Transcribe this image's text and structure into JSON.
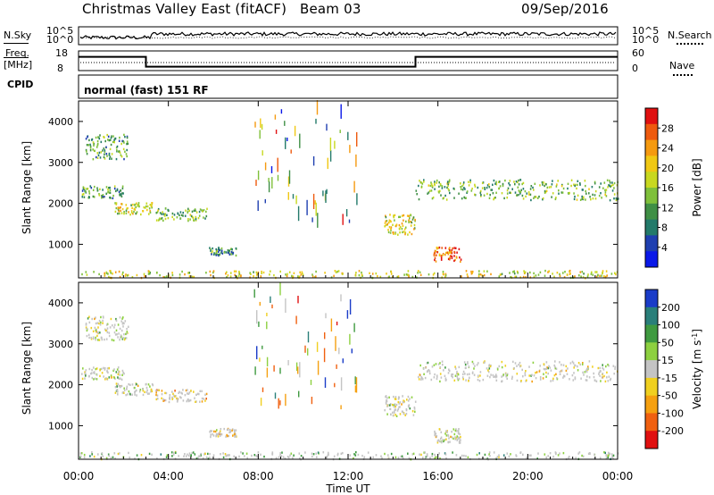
{
  "header": {
    "station": "Christmas Valley East (fitACF)",
    "beam": "Beam 03",
    "date": "09/Sep/2016"
  },
  "summary": {
    "nsky_label": "N.Sky",
    "nsearch_label": "N.Search",
    "freq_label_line1": "Freq.",
    "freq_label_line2": "[MHz]",
    "nave_label": "Nave",
    "cpid_label": "CPID",
    "cpid_value": "normal (fast) 151 RF",
    "noise_left_ticks": [
      "10^5",
      "10^0"
    ],
    "noise_right_ticks": [
      "10^5",
      "10^0"
    ],
    "freq_ticks": [
      "18",
      "8"
    ],
    "nave_ticks": [
      "60",
      "0"
    ],
    "frequency_mhz": [
      {
        "from": "00:00",
        "to": "03:00",
        "value": 15
      },
      {
        "from": "03:00",
        "to": "15:00",
        "value": 10
      },
      {
        "from": "15:00",
        "to": "24:00",
        "value": 15
      }
    ]
  },
  "chart_data": [
    {
      "type": "heatmap",
      "panel": "power",
      "ylabel": "Slant Range [km]",
      "xlabel": "",
      "x_ticks": [
        "00:00",
        "04:00",
        "08:00",
        "12:00",
        "16:00",
        "20:00",
        "00:00"
      ],
      "x_range_hours": [
        0,
        24
      ],
      "y_ticks": [
        1000,
        2000,
        3000,
        4000
      ],
      "ylim": [
        180,
        4500
      ],
      "colorbar": {
        "label": "Power [dB]",
        "ticks": [
          4,
          8,
          12,
          16,
          20,
          24,
          28
        ],
        "colors": [
          "#0a18e8",
          "#1f3fb0",
          "#237a6a",
          "#3f8f45",
          "#7fc03a",
          "#c8d820",
          "#f0c814",
          "#f59a10",
          "#ee5a0e",
          "#e01010"
        ]
      },
      "regions": [
        {
          "t0": 0.3,
          "t1": 2.2,
          "r0": 3100,
          "r1": 3700,
          "level": 0.35
        },
        {
          "t0": 0.1,
          "t1": 2.0,
          "r0": 2150,
          "r1": 2450,
          "level": 0.35
        },
        {
          "t0": 1.6,
          "t1": 3.3,
          "r0": 1750,
          "r1": 2050,
          "level": 0.55
        },
        {
          "t0": 3.4,
          "t1": 5.7,
          "r0": 1600,
          "r1": 1900,
          "level": 0.4
        },
        {
          "t0": 5.8,
          "t1": 7.0,
          "r0": 750,
          "r1": 950,
          "level": 0.3
        },
        {
          "t0": 13.6,
          "t1": 15.0,
          "r0": 1250,
          "r1": 1750,
          "level": 0.6
        },
        {
          "t0": 15.0,
          "t1": 24.0,
          "r0": 2100,
          "r1": 2600,
          "level": 0.4
        },
        {
          "t0": 15.8,
          "t1": 17.0,
          "r0": 600,
          "r1": 950,
          "level": 0.85
        },
        {
          "t0": 0.0,
          "t1": 24.0,
          "r0": 200,
          "r1": 380,
          "level": 0.6
        }
      ]
    },
    {
      "type": "heatmap",
      "panel": "velocity",
      "ylabel": "Slant Range [km]",
      "xlabel": "Time UT",
      "x_ticks": [
        "00:00",
        "04:00",
        "08:00",
        "12:00",
        "16:00",
        "20:00",
        "00:00"
      ],
      "x_range_hours": [
        0,
        24
      ],
      "y_ticks": [
        1000,
        2000,
        3000,
        4000
      ],
      "ylim": [
        180,
        4500
      ],
      "colorbar": {
        "label": "Velocity [m s",
        "label_superscript": "-1",
        "label_close": "]",
        "ticks": [
          200,
          100,
          50,
          15,
          -15,
          -50,
          -100,
          -200
        ],
        "colors": [
          "#1a3cc8",
          "#2a7f7a",
          "#3f9a40",
          "#8dd040",
          "#c4c4c4",
          "#f0d020",
          "#f5a010",
          "#f06010",
          "#e01010"
        ]
      },
      "regions": [
        {
          "t0": 0.3,
          "t1": 2.2,
          "r0": 3100,
          "r1": 3700,
          "level": 0.5
        },
        {
          "t0": 0.1,
          "t1": 2.0,
          "r0": 2150,
          "r1": 2450,
          "level": 0.5
        },
        {
          "t0": 1.6,
          "t1": 3.3,
          "r0": 1750,
          "r1": 2050,
          "level": 0.5
        },
        {
          "t0": 3.4,
          "t1": 5.7,
          "r0": 1600,
          "r1": 1900,
          "level": 0.35
        },
        {
          "t0": 5.8,
          "t1": 7.0,
          "r0": 750,
          "r1": 950,
          "level": 0.35
        },
        {
          "t0": 13.6,
          "t1": 15.0,
          "r0": 1250,
          "r1": 1750,
          "level": 0.5
        },
        {
          "t0": 15.0,
          "t1": 24.0,
          "r0": 2100,
          "r1": 2600,
          "level": 0.5
        },
        {
          "t0": 15.8,
          "t1": 17.0,
          "r0": 600,
          "r1": 950,
          "level": 0.5
        },
        {
          "t0": 0.0,
          "t1": 24.0,
          "r0": 200,
          "r1": 380,
          "level": 0.62
        }
      ]
    }
  ]
}
